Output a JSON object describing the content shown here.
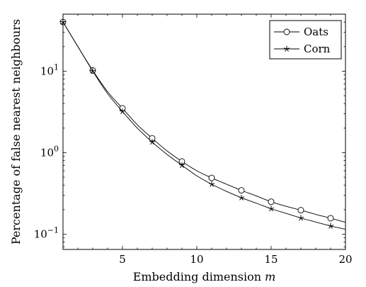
{
  "chart_data": {
    "type": "line",
    "xlabel": "Embedding dimension ",
    "xlabel_var": "m",
    "ylabel": "Percentage of false nearest neighbours",
    "xlim": [
      1,
      20
    ],
    "ylim": [
      0.065,
      50
    ],
    "yscale": "log",
    "xticks": [
      5,
      10,
      15,
      20
    ],
    "yticks": [
      {
        "value": 0.1,
        "base": "10",
        "exp": "−1"
      },
      {
        "value": 1,
        "base": "10",
        "exp": "0"
      },
      {
        "value": 10,
        "base": "10",
        "exp": "1"
      }
    ],
    "grid": false,
    "legend_position": "top-right",
    "series": [
      {
        "name": "Oats",
        "marker": "circle",
        "color": "#000000",
        "x": [
          1,
          2,
          3,
          4,
          5,
          6,
          7,
          8,
          9,
          10,
          11,
          12,
          13,
          14,
          15,
          16,
          17,
          18,
          19,
          20
        ],
        "y": [
          40,
          20,
          10.2,
          5.6,
          3.5,
          2.2,
          1.5,
          1.05,
          0.78,
          0.6,
          0.49,
          0.41,
          0.345,
          0.295,
          0.25,
          0.22,
          0.197,
          0.175,
          0.157,
          0.14
        ],
        "marker_x": [
          1,
          3,
          5,
          7,
          9,
          11,
          13,
          15,
          17,
          19
        ]
      },
      {
        "name": "Corn",
        "marker": "star",
        "color": "#000000",
        "x": [
          1,
          2,
          3,
          4,
          5,
          6,
          7,
          8,
          9,
          10,
          11,
          12,
          13,
          14,
          15,
          16,
          17,
          18,
          19,
          20
        ],
        "y": [
          40,
          20,
          10.0,
          5.3,
          3.2,
          2.0,
          1.35,
          0.95,
          0.7,
          0.52,
          0.41,
          0.335,
          0.28,
          0.24,
          0.205,
          0.18,
          0.158,
          0.141,
          0.126,
          0.115
        ],
        "marker_x": [
          1,
          3,
          5,
          7,
          9,
          11,
          13,
          15,
          17,
          19
        ]
      }
    ]
  }
}
